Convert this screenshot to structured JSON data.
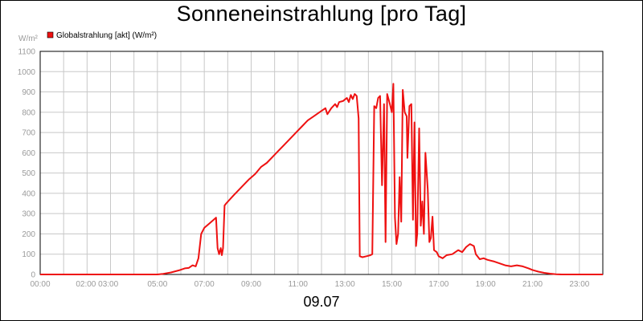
{
  "chart_data": {
    "type": "line",
    "title": "Sonneneinstrahlung [pro Tag]",
    "ylabel": "W/m²",
    "xlabel": "09.07",
    "ylim": [
      0,
      1100
    ],
    "yticks": [
      "0",
      "100",
      "200",
      "300",
      "400",
      "500",
      "600",
      "700",
      "800",
      "900",
      "1000",
      "1100"
    ],
    "xlim": [
      "00:00",
      "24:00"
    ],
    "xticks": [
      "00:00",
      "02:00 03:00",
      "05:00",
      "07:00",
      "09:00",
      "11:00",
      "13:00",
      "15:00",
      "17:00",
      "19:00",
      "21:00",
      "23:00"
    ],
    "grid": true,
    "legend_position": "top-left",
    "series": [
      {
        "name": "Globalstrahlung [akt] (W/m²)",
        "color": "#ee1111",
        "points": [
          [
            "00:00",
            0
          ],
          [
            "05:00",
            0
          ],
          [
            "05:15",
            3
          ],
          [
            "05:35",
            10
          ],
          [
            "05:55",
            20
          ],
          [
            "06:10",
            30
          ],
          [
            "06:20",
            32
          ],
          [
            "06:30",
            45
          ],
          [
            "06:38",
            40
          ],
          [
            "06:45",
            80
          ],
          [
            "06:52",
            200
          ],
          [
            "07:00",
            230
          ],
          [
            "07:15",
            255
          ],
          [
            "07:30",
            280
          ],
          [
            "07:34",
            130
          ],
          [
            "07:38",
            100
          ],
          [
            "07:42",
            130
          ],
          [
            "07:45",
            95
          ],
          [
            "07:48",
            130
          ],
          [
            "07:52",
            340
          ],
          [
            "07:56",
            350
          ],
          [
            "08:15",
            390
          ],
          [
            "08:35",
            430
          ],
          [
            "08:55",
            470
          ],
          [
            "09:10",
            495
          ],
          [
            "09:25",
            530
          ],
          [
            "09:40",
            550
          ],
          [
            "09:55",
            580
          ],
          [
            "10:10",
            610
          ],
          [
            "10:25",
            640
          ],
          [
            "10:40",
            670
          ],
          [
            "10:55",
            700
          ],
          [
            "11:10",
            730
          ],
          [
            "11:25",
            760
          ],
          [
            "11:40",
            780
          ],
          [
            "11:55",
            800
          ],
          [
            "12:10",
            820
          ],
          [
            "12:15",
            790
          ],
          [
            "12:25",
            820
          ],
          [
            "12:35",
            840
          ],
          [
            "12:40",
            825
          ],
          [
            "12:45",
            850
          ],
          [
            "12:55",
            855
          ],
          [
            "13:05",
            870
          ],
          [
            "13:10",
            850
          ],
          [
            "13:15",
            885
          ],
          [
            "13:20",
            865
          ],
          [
            "13:25",
            890
          ],
          [
            "13:30",
            880
          ],
          [
            "13:35",
            770
          ],
          [
            "13:38",
            90
          ],
          [
            "13:45",
            85
          ],
          [
            "13:55",
            90
          ],
          [
            "14:05",
            95
          ],
          [
            "14:10",
            100
          ],
          [
            "14:15",
            830
          ],
          [
            "14:20",
            820
          ],
          [
            "14:25",
            870
          ],
          [
            "14:30",
            880
          ],
          [
            "14:35",
            440
          ],
          [
            "14:40",
            840
          ],
          [
            "14:44",
            160
          ],
          [
            "14:48",
            890
          ],
          [
            "14:55",
            840
          ],
          [
            "15:00",
            800
          ],
          [
            "15:04",
            940
          ],
          [
            "15:08",
            280
          ],
          [
            "15:12",
            150
          ],
          [
            "15:16",
            200
          ],
          [
            "15:20",
            480
          ],
          [
            "15:24",
            260
          ],
          [
            "15:28",
            910
          ],
          [
            "15:33",
            800
          ],
          [
            "15:38",
            780
          ],
          [
            "15:40",
            575
          ],
          [
            "15:45",
            830
          ],
          [
            "15:50",
            840
          ],
          [
            "15:54",
            270
          ],
          [
            "15:58",
            750
          ],
          [
            "16:02",
            140
          ],
          [
            "16:05",
            200
          ],
          [
            "16:10",
            720
          ],
          [
            "16:14",
            240
          ],
          [
            "16:18",
            360
          ],
          [
            "16:22",
            200
          ],
          [
            "16:26",
            600
          ],
          [
            "16:32",
            420
          ],
          [
            "16:36",
            160
          ],
          [
            "16:40",
            180
          ],
          [
            "16:44",
            285
          ],
          [
            "16:48",
            120
          ],
          [
            "16:55",
            110
          ],
          [
            "17:00",
            90
          ],
          [
            "17:10",
            80
          ],
          [
            "17:20",
            95
          ],
          [
            "17:35",
            100
          ],
          [
            "17:50",
            120
          ],
          [
            "18:00",
            110
          ],
          [
            "18:10",
            135
          ],
          [
            "18:20",
            150
          ],
          [
            "18:30",
            140
          ],
          [
            "18:35",
            100
          ],
          [
            "18:45",
            75
          ],
          [
            "18:55",
            80
          ],
          [
            "19:05",
            72
          ],
          [
            "19:20",
            65
          ],
          [
            "19:35",
            55
          ],
          [
            "19:50",
            45
          ],
          [
            "20:05",
            40
          ],
          [
            "20:20",
            45
          ],
          [
            "20:35",
            40
          ],
          [
            "20:50",
            30
          ],
          [
            "21:00",
            22
          ],
          [
            "21:15",
            14
          ],
          [
            "21:30",
            8
          ],
          [
            "21:45",
            4
          ],
          [
            "22:00",
            1
          ],
          [
            "22:15",
            0
          ],
          [
            "24:00",
            0
          ]
        ]
      }
    ]
  }
}
